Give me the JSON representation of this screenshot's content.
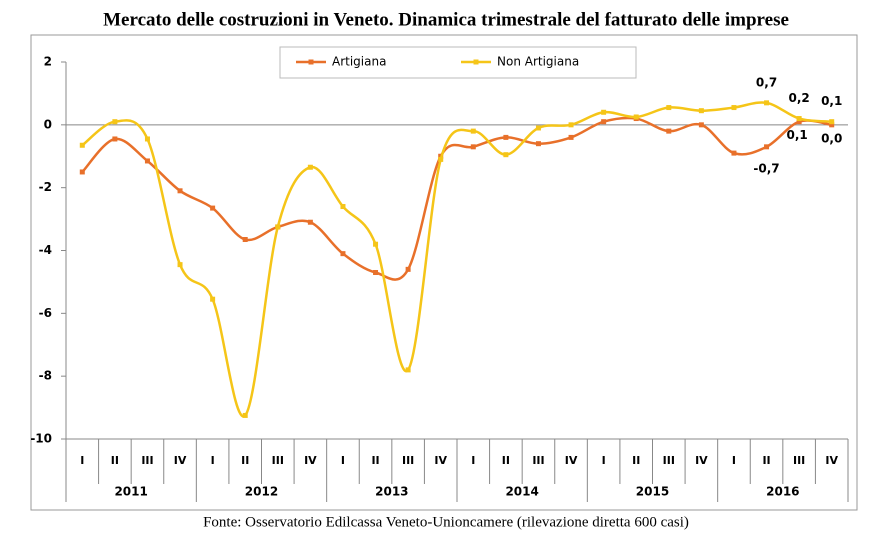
{
  "chart_data": {
    "type": "line",
    "title": "Mercato delle costruzioni in Veneto. Dinamica trimestrale del fatturato delle imprese",
    "source": "Fonte: Osservatorio Edilcassa Veneto-Unioncamere (rilevazione diretta 600 casi)",
    "categories": [
      "I",
      "II",
      "III",
      "IV",
      "I",
      "II",
      "III",
      "IV",
      "I",
      "II",
      "III",
      "IV",
      "I",
      "II",
      "III",
      "IV",
      "I",
      "II",
      "III",
      "IV",
      "I",
      "II",
      "III",
      "IV"
    ],
    "years": [
      "2011",
      "2012",
      "2013",
      "2014",
      "2015",
      "2016"
    ],
    "series": [
      {
        "name": "Artigiana",
        "color": "#e8702a",
        "values": [
          -1.5,
          -0.45,
          -1.15,
          -2.1,
          -2.65,
          -3.65,
          -3.25,
          -3.1,
          -4.1,
          -4.7,
          -4.6,
          -1.0,
          -0.7,
          -0.4,
          -0.6,
          -0.4,
          0.1,
          0.2,
          -0.2,
          0.0,
          -0.9,
          -0.7,
          0.1,
          0.0
        ],
        "value_labels": [
          null,
          null,
          null,
          null,
          null,
          null,
          null,
          null,
          null,
          null,
          null,
          null,
          null,
          null,
          null,
          null,
          null,
          null,
          null,
          null,
          null,
          "-0,7",
          "0,1",
          "0,0"
        ]
      },
      {
        "name": "Non Artigiana",
        "color": "#f5c518",
        "values": [
          -0.65,
          0.1,
          -0.45,
          -4.45,
          -5.55,
          -9.25,
          -3.25,
          -1.35,
          -2.6,
          -3.8,
          -7.8,
          -1.1,
          -0.2,
          -0.95,
          -0.1,
          0.0,
          0.4,
          0.25,
          0.55,
          0.45,
          0.55,
          0.7,
          0.2,
          0.1
        ],
        "value_labels": [
          null,
          null,
          null,
          null,
          null,
          null,
          null,
          null,
          null,
          null,
          null,
          null,
          null,
          null,
          null,
          null,
          null,
          null,
          null,
          null,
          null,
          "0,7",
          "0,2",
          "0,1"
        ]
      }
    ],
    "ylim": [
      -10,
      2
    ],
    "yticks": [
      -10,
      -8,
      -6,
      -4,
      -2,
      0,
      2
    ],
    "grid": false,
    "legend": "top"
  }
}
